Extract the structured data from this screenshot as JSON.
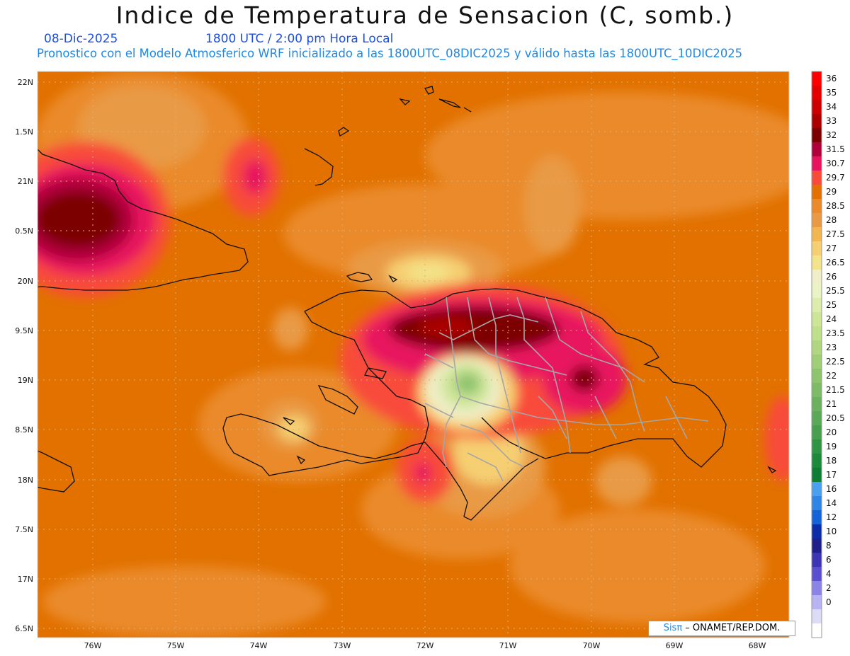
{
  "header": {
    "title": "Indice de Temperatura de Sensacion (C, somb.)",
    "date": "08-Dic-2025",
    "time": "1800 UTC / 2:00 pm Hora Local",
    "description": "Pronostico con el Modelo Atmosferico WRF inicializado a las 1800UTC_08DIC2025 y válido hasta las  1800UTC_10DIC2025"
  },
  "axes": {
    "lat_labels": [
      "22N",
      "1.5N",
      "21N",
      "0.5N",
      "20N",
      "9.5N",
      "19N",
      "8.5N",
      "18N",
      "7.5N",
      "17N",
      "6.5N"
    ],
    "lon_labels": [
      "76W",
      "75W",
      "74W",
      "73W",
      "72W",
      "71W",
      "70W",
      "69W",
      "68W"
    ]
  },
  "colorbar": {
    "levels": [
      {
        "label": "36",
        "color": "#ff0000"
      },
      {
        "label": "35",
        "color": "#e50000"
      },
      {
        "label": "34",
        "color": "#cc0000"
      },
      {
        "label": "33",
        "color": "#aa0000"
      },
      {
        "label": "32",
        "color": "#7d0000"
      },
      {
        "label": "31.5",
        "color": "#b0003a"
      },
      {
        "label": "30.7",
        "color": "#e8125f"
      },
      {
        "label": "29.7",
        "color": "#f84b3a"
      },
      {
        "label": "29",
        "color": "#e27100"
      },
      {
        "label": "28.5",
        "color": "#ea8a2a"
      },
      {
        "label": "28",
        "color": "#e99a45"
      },
      {
        "label": "27.5",
        "color": "#f2b650"
      },
      {
        "label": "27",
        "color": "#f6cf72"
      },
      {
        "label": "26.5",
        "color": "#f3e38a"
      },
      {
        "label": "26",
        "color": "#efeec8"
      },
      {
        "label": "25.5",
        "color": "#e9f3c3"
      },
      {
        "label": "25",
        "color": "#dcecaa"
      },
      {
        "label": "24",
        "color": "#cde596"
      },
      {
        "label": "23.5",
        "color": "#bfe08a"
      },
      {
        "label": "23",
        "color": "#b0d67f"
      },
      {
        "label": "22.5",
        "color": "#a0ce77"
      },
      {
        "label": "22",
        "color": "#8fc46e"
      },
      {
        "label": "21.5",
        "color": "#7ebb66"
      },
      {
        "label": "21",
        "color": "#6cb25e"
      },
      {
        "label": "20.5",
        "color": "#5aa957"
      },
      {
        "label": "20",
        "color": "#48a04f"
      },
      {
        "label": "19",
        "color": "#2f9545"
      },
      {
        "label": "18",
        "color": "#1b8a3b"
      },
      {
        "label": "17",
        "color": "#0f7d34"
      },
      {
        "label": "16",
        "color": "#4aa0ee"
      },
      {
        "label": "14",
        "color": "#2f86e6"
      },
      {
        "label": "12",
        "color": "#1563d8"
      },
      {
        "label": "10",
        "color": "#0b2ea8"
      },
      {
        "label": "8",
        "color": "#1f1f8c"
      },
      {
        "label": "6",
        "color": "#3d33b5"
      },
      {
        "label": "4",
        "color": "#5a4fd0"
      },
      {
        "label": "2",
        "color": "#8b84e6"
      },
      {
        "label": "0",
        "color": "#b8b3f2"
      },
      {
        "label": "",
        "color": "#dcdcf7"
      },
      {
        "label": "",
        "color": "#ffffff"
      }
    ]
  },
  "credit": {
    "sis": "Sisπ",
    "rest": " – ONAMET/REP.DOM."
  }
}
